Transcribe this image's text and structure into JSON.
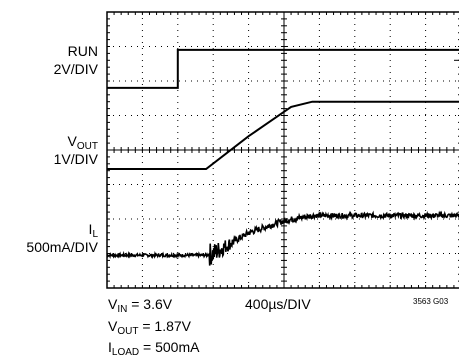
{
  "chart_data": {
    "type": "line",
    "title": "",
    "grid": true,
    "x_divisions": 10,
    "y_divisions": 8,
    "x_scale": "400µs/DIV",
    "traces": [
      {
        "name": "RUN",
        "scale": "2V/DIV",
        "units": "div",
        "points": [
          [
            0,
            5.8
          ],
          [
            2.0,
            5.8
          ],
          [
            2.0,
            6.9
          ],
          [
            10,
            6.9
          ]
        ]
      },
      {
        "name": "VOUT",
        "scale": "1V/DIV",
        "units": "div",
        "points": [
          [
            0,
            3.45
          ],
          [
            2.8,
            3.45
          ],
          [
            4.0,
            4.4
          ],
          [
            5.2,
            5.25
          ],
          [
            5.8,
            5.4
          ],
          [
            10,
            5.4
          ]
        ]
      },
      {
        "name": "IL",
        "scale": "500mA/DIV",
        "units": "div",
        "noise": true,
        "points": [
          [
            0,
            0.95
          ],
          [
            2.8,
            0.95
          ],
          [
            3.0,
            1.0
          ],
          [
            4.0,
            1.6
          ],
          [
            5.0,
            1.95
          ],
          [
            5.8,
            2.1
          ],
          [
            10,
            2.1
          ]
        ]
      }
    ]
  },
  "labels": {
    "run_name": "RUN",
    "run_scale": "2V/DIV",
    "vout_main": "V",
    "vout_sub": "OUT",
    "vout_scale": "1V/DIV",
    "il_main": "I",
    "il_sub": "L",
    "il_scale": "500mA/DIV"
  },
  "footer": {
    "vin_main": "V",
    "vin_sub": "IN",
    "vin_value": " = 3.6V",
    "time_div": "400µs/DIV",
    "fig_id": "3563 G03",
    "vout_main": "V",
    "vout_sub": "OUT",
    "vout_value": " = 1.87V",
    "iload_main": "I",
    "iload_sub": "LOAD",
    "iload_value": " = 500mA"
  }
}
